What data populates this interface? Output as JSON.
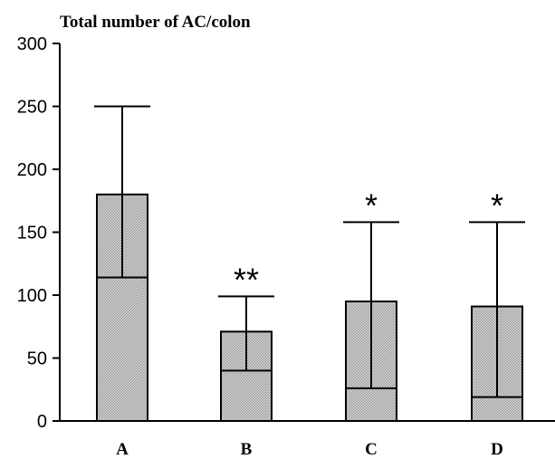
{
  "chart_data": {
    "type": "bar",
    "title": "Total number of AC/colon",
    "xlabel": "",
    "ylabel": "",
    "ylim": [
      0,
      300
    ],
    "yticks": [
      0,
      50,
      100,
      150,
      200,
      250,
      300
    ],
    "categories": [
      "A",
      "B",
      "C",
      "D"
    ],
    "values": [
      180,
      71,
      95,
      91
    ],
    "inner_line": [
      114,
      40,
      26,
      19
    ],
    "error_upper": [
      250,
      99,
      158,
      158
    ],
    "significance": [
      "",
      "**",
      "*",
      "*"
    ],
    "grid": false,
    "legend": "none",
    "bar_fill": "#c8c8c8",
    "line_color": "#000000"
  }
}
